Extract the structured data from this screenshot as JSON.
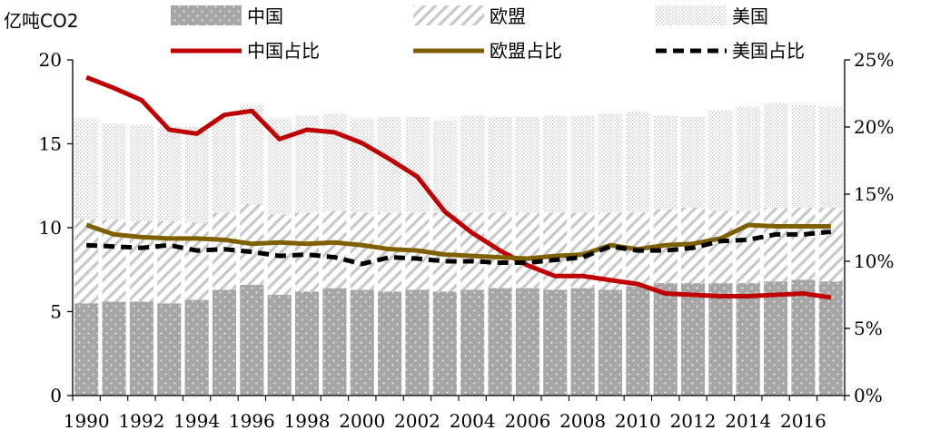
{
  "chart_data": {
    "type": "bar+line",
    "unit_label": "亿吨CO2",
    "categories": [
      1990,
      1991,
      1992,
      1993,
      1994,
      1995,
      1996,
      1997,
      1998,
      1999,
      2000,
      2001,
      2002,
      2003,
      2004,
      2005,
      2006,
      2007,
      2008,
      2009,
      2010,
      2011,
      2012,
      2013,
      2014,
      2015,
      2016,
      2017
    ],
    "x_tick_labels": [
      "1990",
      "1992",
      "1994",
      "1996",
      "1998",
      "2000",
      "2002",
      "2004",
      "2006",
      "2008",
      "2010",
      "2012",
      "2014",
      "2016"
    ],
    "left_axis": {
      "ylim": [
        0,
        20
      ],
      "ticks": [
        "0",
        "5",
        "10",
        "15",
        "20"
      ]
    },
    "right_axis": {
      "ylim": [
        0,
        25
      ],
      "ticks": [
        "0%",
        "5%",
        "10%",
        "15%",
        "20%",
        "25%"
      ]
    },
    "bar_series": [
      {
        "name": "中国",
        "axis": "left",
        "pattern": "dots-dark",
        "values": [
          5.5,
          5.6,
          5.6,
          5.5,
          5.7,
          6.3,
          6.6,
          6.0,
          6.2,
          6.4,
          6.3,
          6.2,
          6.3,
          6.2,
          6.3,
          6.4,
          6.4,
          6.3,
          6.4,
          6.3,
          6.5,
          6.7,
          6.7,
          6.7,
          6.7,
          6.8,
          6.9,
          6.8
        ]
      },
      {
        "name": "欧盟",
        "axis": "left",
        "pattern": "diagonal-hatch",
        "values": [
          5.0,
          4.9,
          4.8,
          4.9,
          4.6,
          4.6,
          4.8,
          4.8,
          4.7,
          4.6,
          4.6,
          4.7,
          4.6,
          4.7,
          4.6,
          4.5,
          4.5,
          4.6,
          4.5,
          4.6,
          4.4,
          4.4,
          4.5,
          4.3,
          4.3,
          4.4,
          4.3,
          4.4
        ]
      },
      {
        "name": "美国",
        "axis": "left",
        "pattern": "dots-light",
        "values": [
          6.0,
          5.7,
          5.7,
          5.6,
          5.7,
          5.7,
          5.9,
          5.7,
          5.8,
          5.8,
          5.6,
          5.7,
          5.7,
          5.5,
          5.8,
          5.7,
          5.7,
          5.8,
          5.8,
          5.9,
          6.0,
          5.6,
          5.4,
          6.0,
          6.2,
          6.2,
          6.1,
          6.0
        ]
      }
    ],
    "line_series": [
      {
        "name": "中国占比",
        "axis": "right",
        "color": "#C00000",
        "dash": "solid",
        "values": [
          23.7,
          22.9,
          22.0,
          19.8,
          19.5,
          20.9,
          21.2,
          19.1,
          19.8,
          19.6,
          18.8,
          17.6,
          16.3,
          13.7,
          12.1,
          10.8,
          9.7,
          8.9,
          8.9,
          8.6,
          8.3,
          7.6,
          7.5,
          7.4,
          7.4,
          7.5,
          7.6,
          7.3
        ]
      },
      {
        "name": "欧盟占比",
        "axis": "right",
        "color": "#7F6000",
        "dash": "solid",
        "values": [
          12.7,
          12.0,
          11.8,
          11.7,
          11.7,
          11.6,
          11.3,
          11.4,
          11.3,
          11.4,
          11.2,
          10.9,
          10.8,
          10.5,
          10.4,
          10.3,
          10.2,
          10.4,
          10.5,
          11.2,
          10.9,
          11.2,
          11.3,
          11.7,
          12.7,
          12.6,
          12.6,
          12.6
        ]
      },
      {
        "name": "美国占比",
        "axis": "right",
        "color": "#000000",
        "dash": "dashed",
        "values": [
          11.2,
          11.1,
          11.0,
          11.2,
          10.8,
          10.9,
          10.7,
          10.4,
          10.5,
          10.3,
          9.8,
          10.3,
          10.2,
          10.0,
          10.0,
          9.9,
          9.9,
          10.1,
          10.3,
          11.1,
          10.8,
          10.8,
          11.0,
          11.5,
          11.6,
          12.0,
          12.0,
          12.2
        ]
      }
    ],
    "legend": {
      "placement": "top"
    }
  }
}
